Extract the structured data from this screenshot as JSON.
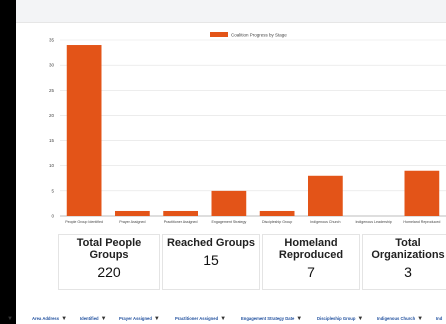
{
  "chart_data": {
    "type": "bar",
    "title": "",
    "legend": {
      "label": "Coalition Progress by Stage",
      "color": "#e35418",
      "position": "top"
    },
    "categories": [
      "People Group Identified",
      "Prayer Assigned",
      "Practitioner Assigned",
      "Engagement Strategy",
      "Discipleship Group",
      "Indigenous Church",
      "Indigenous Leadership",
      "Homeland Reproduced"
    ],
    "values": [
      34,
      1,
      1,
      5,
      1,
      8,
      0,
      9
    ],
    "yticks": [
      0,
      5,
      10,
      15,
      20,
      25,
      30,
      35
    ],
    "ylim": [
      0,
      35
    ],
    "bar_color": "#e35418",
    "grid": true
  },
  "stats": [
    {
      "label": "Total People Groups",
      "value": "220"
    },
    {
      "label": "Reached Groups",
      "value": "15"
    },
    {
      "label": "Homeland Reproduced",
      "value": "7"
    },
    {
      "label": "Total Organizations",
      "value": "3"
    }
  ],
  "filters": [
    {
      "label": "Area Address"
    },
    {
      "label": "Identified"
    },
    {
      "label": "Prayer Assigned"
    },
    {
      "label": "Practitioner Assigned"
    },
    {
      "label": "Engagement Strategy Date"
    },
    {
      "label": "Discipleship Group"
    },
    {
      "label": "Indigenous Church"
    },
    {
      "label": "Ind"
    }
  ],
  "filter_icon": "funnel-icon"
}
